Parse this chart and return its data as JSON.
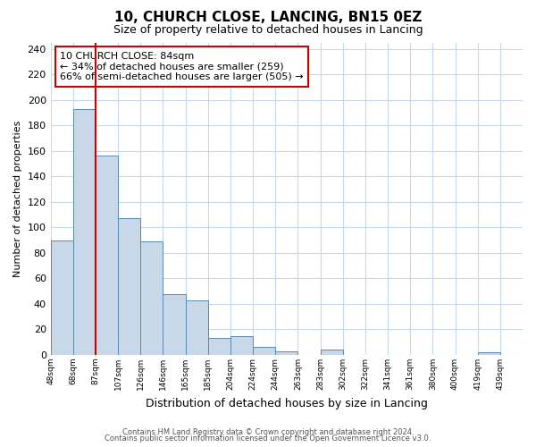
{
  "title": "10, CHURCH CLOSE, LANCING, BN15 0EZ",
  "subtitle": "Size of property relative to detached houses in Lancing",
  "xlabel": "Distribution of detached houses by size in Lancing",
  "ylabel": "Number of detached properties",
  "bin_labels": [
    "48sqm",
    "68sqm",
    "87sqm",
    "107sqm",
    "126sqm",
    "146sqm",
    "165sqm",
    "185sqm",
    "204sqm",
    "224sqm",
    "244sqm",
    "263sqm",
    "283sqm",
    "302sqm",
    "322sqm",
    "341sqm",
    "361sqm",
    "380sqm",
    "400sqm",
    "419sqm",
    "439sqm"
  ],
  "bar_heights": [
    90,
    193,
    156,
    107,
    89,
    48,
    43,
    13,
    15,
    6,
    3,
    0,
    4,
    0,
    0,
    0,
    0,
    0,
    0,
    2,
    0
  ],
  "bar_color": "#c8d8e8",
  "bar_edge_color": "#5a8ab0",
  "vline_bar_index": 1,
  "vline_color": "#cc0000",
  "ylim": [
    0,
    245
  ],
  "yticks": [
    0,
    20,
    40,
    60,
    80,
    100,
    120,
    140,
    160,
    180,
    200,
    220,
    240
  ],
  "annotation_title": "10 CHURCH CLOSE: 84sqm",
  "annotation_line1": "← 34% of detached houses are smaller (259)",
  "annotation_line2": "66% of semi-detached houses are larger (505) →",
  "annotation_box_color": "#ffffff",
  "annotation_box_edge": "#cc0000",
  "footer1": "Contains HM Land Registry data © Crown copyright and database right 2024.",
  "footer2": "Contains public sector information licensed under the Open Government Licence v3.0.",
  "bg_color": "#ffffff",
  "grid_color": "#c8d8ec"
}
